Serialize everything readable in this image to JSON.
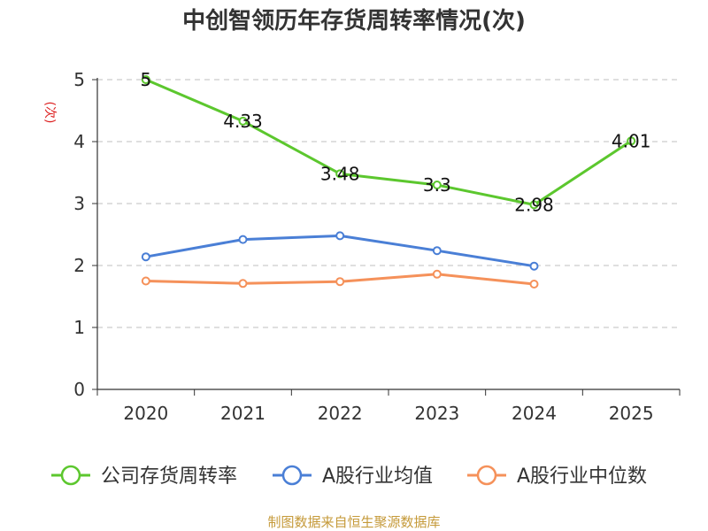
{
  "chart_data": {
    "type": "line",
    "title": "中创智领历年存货周转率情况(次)",
    "ylabel": "(次)",
    "xlabel": "",
    "categories": [
      "2020",
      "2021",
      "2022",
      "2023",
      "2024",
      "2025"
    ],
    "ylim": [
      0,
      5
    ],
    "yticks": [
      0,
      1,
      2,
      3,
      4,
      5
    ],
    "grid": true,
    "legend_position": "bottom",
    "series": [
      {
        "name": "公司存货周转率",
        "color": "#5cc72e",
        "values": [
          5,
          4.33,
          3.48,
          3.3,
          2.98,
          4.01
        ],
        "labels": [
          "5",
          "4.33",
          "3.48",
          "3.3",
          "2.98",
          "4.01"
        ],
        "show_labels": true
      },
      {
        "name": "A股行业均值",
        "color": "#4a7fd6",
        "values": [
          2.14,
          2.42,
          2.48,
          2.24,
          1.99,
          null
        ],
        "show_labels": false
      },
      {
        "name": "A股行业中位数",
        "color": "#f5915a",
        "values": [
          1.75,
          1.71,
          1.74,
          1.86,
          1.7,
          null
        ],
        "show_labels": false
      }
    ]
  },
  "source": "制图数据来自恒生聚源数据库"
}
